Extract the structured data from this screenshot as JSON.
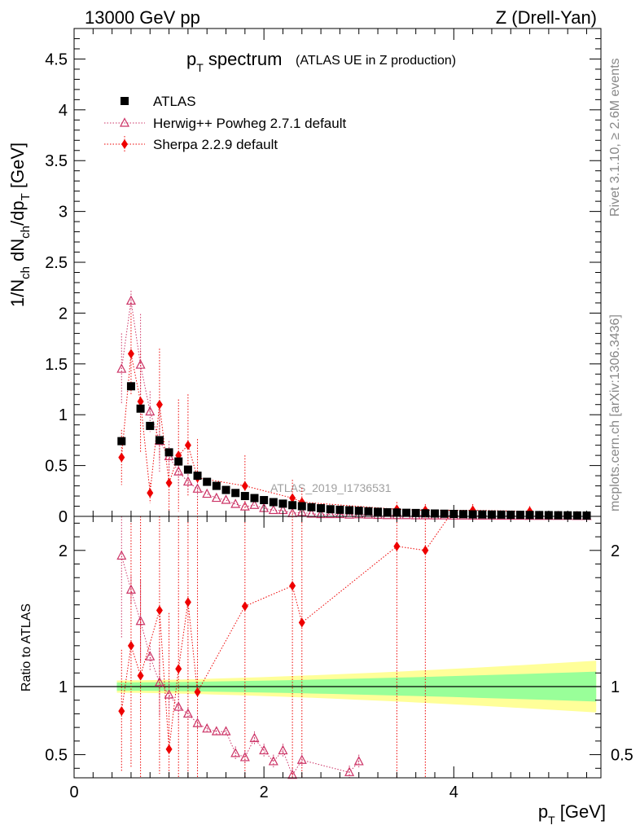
{
  "header": {
    "left": "13000 GeV pp",
    "right": "Z (Drell-Yan)"
  },
  "side_labels": {
    "rivet": "Rivet 3.1.10, ≥ 2.6M events",
    "mcplots": "mcplots.cern.ch [arXiv:1306.3436]"
  },
  "watermark": "ATLAS_2019_I1736531",
  "colors": {
    "data": "#000000",
    "herwig": "#cc3366",
    "sherpa": "#ee0000",
    "band_inner": "#99ff99",
    "band_outer": "#ffff99"
  },
  "chart_data": [
    {
      "type": "scatter",
      "title_main": "p",
      "title_sub": "T",
      "title_rest": " spectrum",
      "title_note": "(ATLAS UE in Z production)",
      "ylabel": "1/N_ch dN_ch/dp_T [GeV]",
      "xlim": [
        0,
        5.55
      ],
      "ylim": [
        0,
        4.8
      ],
      "yticks": [
        "0",
        "0.5",
        "1",
        "1.5",
        "2",
        "2.5",
        "3",
        "3.5",
        "4",
        "4.5"
      ],
      "legend_position": "top-left",
      "series": [
        {
          "name": "ATLAS",
          "marker": "square",
          "x": [
            0.5,
            0.6,
            0.7,
            0.8,
            0.9,
            1.0,
            1.1,
            1.2,
            1.3,
            1.4,
            1.5,
            1.6,
            1.7,
            1.8,
            1.9,
            2.0,
            2.1,
            2.2,
            2.3,
            2.4,
            2.5,
            2.6,
            2.7,
            2.8,
            2.9,
            3.0,
            3.1,
            3.2,
            3.3,
            3.4,
            3.5,
            3.6,
            3.7,
            3.8,
            3.9,
            4.0,
            4.1,
            4.2,
            4.3,
            4.4,
            4.5,
            4.6,
            4.7,
            4.8,
            4.9,
            5.0,
            5.1,
            5.2,
            5.3,
            5.4
          ],
          "y": [
            0.74,
            1.28,
            1.06,
            0.89,
            0.75,
            0.63,
            0.54,
            0.46,
            0.4,
            0.34,
            0.3,
            0.26,
            0.23,
            0.2,
            0.18,
            0.16,
            0.14,
            0.125,
            0.11,
            0.1,
            0.09,
            0.08,
            0.07,
            0.065,
            0.06,
            0.055,
            0.05,
            0.045,
            0.04,
            0.038,
            0.035,
            0.033,
            0.03,
            0.028,
            0.026,
            0.024,
            0.022,
            0.02,
            0.019,
            0.018,
            0.017,
            0.016,
            0.015,
            0.014,
            0.013,
            0.012,
            0.011,
            0.01,
            0.009,
            0.008
          ]
        },
        {
          "name": "Herwig++ Powheg 2.7.1 default",
          "marker": "triangle",
          "x": [
            0.5,
            0.6,
            0.7,
            0.8,
            0.9,
            1.0,
            1.1,
            1.2,
            1.3,
            1.4,
            1.5,
            1.6,
            1.7,
            1.8,
            1.9,
            2.0,
            2.1,
            2.2,
            2.3,
            2.4,
            2.5,
            2.6,
            2.7,
            2.8,
            2.9,
            3.0,
            3.1,
            3.2,
            3.3,
            3.4,
            3.5,
            3.6,
            3.7,
            3.8,
            3.9,
            4.0,
            4.1,
            4.2,
            4.3,
            4.4,
            4.5,
            4.6,
            4.7,
            4.8,
            4.9,
            5.0,
            5.1,
            5.2,
            5.3,
            5.4
          ],
          "y": [
            1.45,
            2.12,
            1.49,
            1.03,
            0.74,
            0.59,
            0.44,
            0.34,
            0.27,
            0.22,
            0.18,
            0.16,
            0.12,
            0.095,
            0.11,
            0.08,
            0.06,
            0.06,
            0.03,
            0.04,
            0.025,
            0.02,
            0.02,
            0.02,
            0.015,
            0.018,
            0.015,
            0.012,
            0.01,
            0.01,
            0.01,
            0.008,
            0.008,
            0.007,
            0.007,
            0.006,
            0.006,
            0.005,
            0.005,
            0.005,
            0.004,
            0.004,
            0.004,
            0.003,
            0.003,
            0.003,
            0.003,
            0.003,
            0.002,
            0.002
          ]
        },
        {
          "name": "Sherpa 2.2.9 default",
          "marker": "diamond",
          "x": [
            0.5,
            0.6,
            0.7,
            0.8,
            0.9,
            1.0,
            1.1,
            1.2,
            1.3,
            1.8,
            2.3,
            2.4,
            3.4,
            3.7,
            4.2,
            4.8
          ],
          "y": [
            0.58,
            1.6,
            1.13,
            0.23,
            1.1,
            0.33,
            0.6,
            0.7,
            0.38,
            0.3,
            0.18,
            0.14,
            0.07,
            0.06,
            0.06,
            0.05
          ]
        }
      ]
    },
    {
      "type": "scatter",
      "ylabel": "Ratio to ATLAS",
      "xlabel_main": "p",
      "xlabel_sub": "T",
      "xlabel_rest": " [GeV]",
      "xlim": [
        0,
        5.55
      ],
      "ylim": [
        0.33,
        2.25
      ],
      "yticks": [
        "0.5",
        "1",
        "2"
      ],
      "xticks": [
        "0",
        "2",
        "4"
      ],
      "reference_line": 1,
      "band_x": [
        0.45,
        5.5
      ],
      "band_inner_halfwidth": [
        0.03,
        0.11
      ],
      "band_outer_halfwidth": [
        0.045,
        0.19
      ],
      "series": [
        {
          "name": "Herwig++ Powheg 2.7.1 default",
          "x": [
            0.5,
            0.6,
            0.7,
            0.8,
            0.9,
            1.0,
            1.1,
            1.2,
            1.3,
            1.4,
            1.5,
            1.6,
            1.7,
            1.8,
            1.9,
            2.0,
            2.1,
            2.2,
            2.3,
            2.4,
            2.9,
            3.0
          ],
          "y": [
            1.96,
            1.71,
            1.48,
            1.22,
            1.03,
            0.94,
            0.85,
            0.8,
            0.73,
            0.69,
            0.67,
            0.67,
            0.51,
            0.48,
            0.62,
            0.53,
            0.45,
            0.53,
            0.35,
            0.46,
            0.37,
            0.45
          ]
        },
        {
          "name": "Sherpa 2.2.9 default",
          "x": [
            0.5,
            0.6,
            0.7,
            0.9,
            1.0,
            1.1,
            1.2,
            1.3,
            1.8,
            2.3,
            2.4,
            3.4,
            3.7,
            3.95
          ],
          "y": [
            0.82,
            1.3,
            1.08,
            1.56,
            0.54,
            1.13,
            1.62,
            0.96,
            1.59,
            1.74,
            1.47,
            2.03,
            2.0,
            2.25
          ]
        }
      ]
    }
  ]
}
